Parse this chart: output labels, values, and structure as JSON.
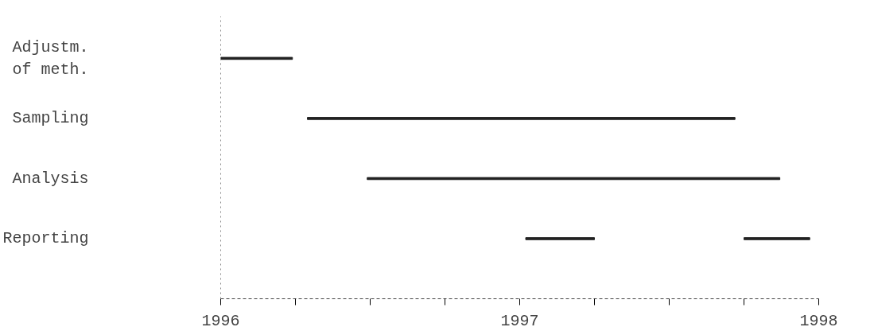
{
  "chart_data": {
    "type": "bar",
    "orientation": "horizontal",
    "categories": [
      "Adjustm.\nof meth.",
      "Sampling",
      "Analysis",
      "Reporting"
    ],
    "series": [
      {
        "color": "#222222",
        "base": [
          1996,
          1996.29,
          1996.49,
          1997.02
        ],
        "values": [
          0.24,
          1.43,
          1.38,
          0.23
        ]
      },
      {
        "color": "#222222",
        "base": [
          null,
          null,
          null,
          1997.75
        ],
        "values": [
          null,
          null,
          null,
          0.22
        ]
      }
    ],
    "xlim": [
      1996,
      1998
    ],
    "xticks": [
      1996,
      {
        "value": 1996.25,
        "label": null
      },
      {
        "value": 1996.5,
        "label": null
      },
      {
        "value": 1996.75,
        "label": null
      },
      1997,
      {
        "value": 1997.25,
        "label": null
      },
      {
        "value": 1997.5,
        "label": null
      },
      {
        "value": 1997.75,
        "label": null
      },
      1998
    ],
    "grid": false
  }
}
